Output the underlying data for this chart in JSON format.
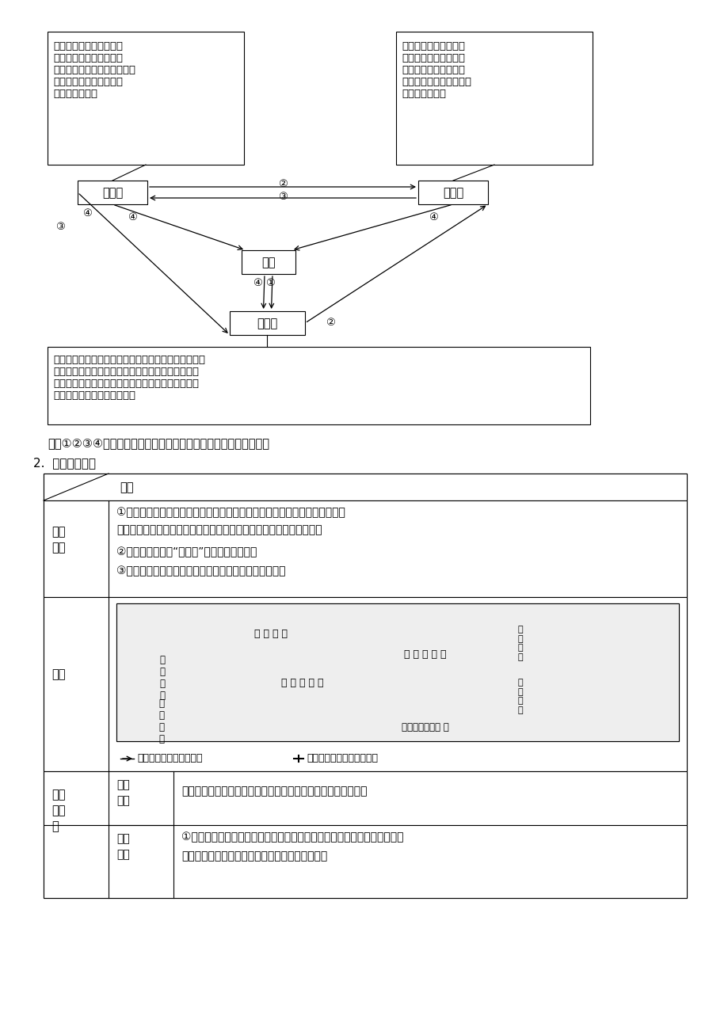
{
  "bg_color": "#ffffff",
  "title_note": "图中①②③④分别表示冷却凝固、外力作用、变质作用、重燔再生。",
  "section2_title": "2.  板块构造理论",
  "box1_line1": "由原有岩石在内力作用产",
  "box1_line2": "生的高温高压条件下变质",
  "box1_line3": "（重新结晶，形成片理构造）",
  "box1_line4": "而成；片麻岩、板岩、大",
  "box1_line5": "理岩为常见岩石",
  "box2_line1": "地表各类岩石经外力作",
  "box2_line2": "用转化而成，特点是具",
  "box2_line3": "有层理构造，有的则含",
  "box2_line4": "有化石；石灰岩、砂岩、",
  "box2_line5": "页岩为常见岩石",
  "box3_line1": "在内力作用下，岩浆如噴出地表冷凝，则形成噴出岩，",
  "box3_line2": "以玄武岩最为常见，多有孔洞；岩浆如侵入地壳上部",
  "box3_line3": "冷凝，则形成侵入岩，以花岗岩最为常见，其质地紧",
  "box3_line4": "密、坚硬，是良好的建筑材料",
  "node_bianzhi": "变质岩",
  "node_jinji": "沉积岩",
  "node_yanjiang": "岩浆",
  "node_yanjiangyan": "岩浆岩",
  "table_header_col": "内容",
  "table_row1_label_1": "理论",
  "table_row1_label_2": "要点",
  "table_row1_c1": "①岩石圈不是一块整体，而是被构造带（海岭、海沟）分割成六大板块（亚欧",
  "table_row1_c2": "板块、非洲板块、美洲板块、太平洋板块、印度洋板块、南极洲板块）",
  "table_row1_c3": "②这些板块漂浮在“软流层”之上，不停地运动",
  "table_row1_c4": "③板块内部比较稳定，板块交界处是地壳比较活跃的地带",
  "table_row2_label": "图示",
  "table_row3_label_1": "解释",
  "table_row3_label_2": "与运",
  "table_row3_label_3": "用",
  "table_row3a_sub1": "板块",
  "table_row3a_sub2": "张裂",
  "table_row3a_content": "板块张裂形成裂谷或海洋，如东非大裂谷、大西洋处于生长边界",
  "table_row3b_sub1": "板块",
  "table_row3b_sub2": "相撞",
  "table_row3b_c1": "①大陆与大洋板块相撞，形成海沟、岛弧或海岁山脉，如亚洲东部岛弧、北",
  "table_row3b_c2": "美洲西部的海岕山脉、马里亚纳海沟处于消亡边界",
  "legend_grow": "生长边界（海岭、断层）",
  "legend_die": "消亡边界（海沟、造山带）",
  "map_label1": "亚 欧 板 块",
  "map_label2": "太 平 洋 板 块",
  "map_label3": "印 度 洋 板 块",
  "map_label4": "南～极～洲～板 块",
  "map_label5": "非\n洲\n板\n块",
  "map_label6": "美\n洲\n板\n块",
  "map_label7": "亚\n欧\n板\n块",
  "map_label8": "非\n洲\n板\n块"
}
